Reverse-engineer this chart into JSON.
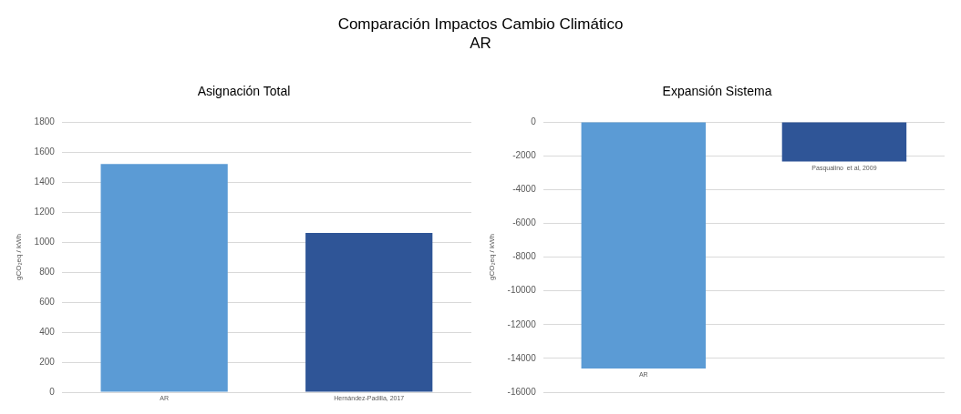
{
  "chart_data": [
    {
      "type": "other",
      "title": "Comparación Impactos Cambio Climático",
      "subtitle": "AR"
    },
    {
      "type": "bar",
      "title": "Asignación Total",
      "ylabel": "gCO₂eq / kWh",
      "categories": [
        "AR",
        "Hernández-Padilla, 2017"
      ],
      "values": [
        1520,
        1060
      ],
      "colors": [
        "#5b9bd5",
        "#2f5597"
      ],
      "ylim": [
        0,
        1800
      ],
      "yticks": [
        0,
        200,
        400,
        600,
        800,
        1000,
        1200,
        1400,
        1600,
        1800
      ],
      "grid": "y",
      "legend": false
    },
    {
      "type": "bar",
      "title": "Expansión Sistema",
      "ylabel": "gCO₂eq / kWh",
      "categories": [
        "AR",
        "Pasqualino  et al, 2009"
      ],
      "values": [
        -14600,
        -2350
      ],
      "colors": [
        "#5b9bd5",
        "#2f5597"
      ],
      "ylim": [
        -16000,
        0
      ],
      "yticks": [
        -16000,
        -14000,
        -12000,
        -10000,
        -8000,
        -6000,
        -4000,
        -2000,
        0
      ],
      "grid": "y",
      "legend": false
    }
  ]
}
